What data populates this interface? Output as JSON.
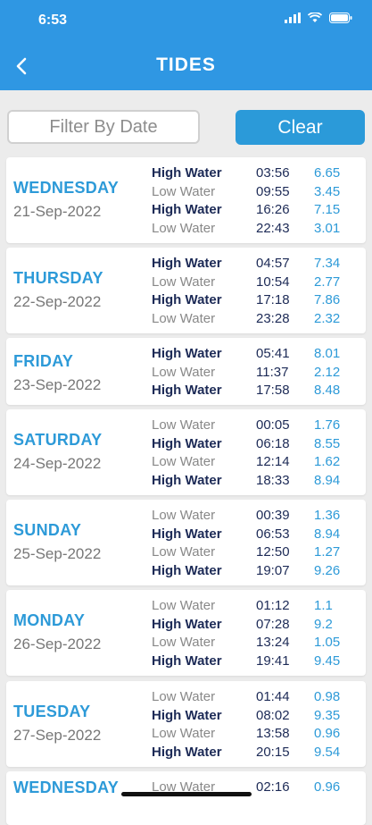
{
  "status_bar": {
    "time": "6:53"
  },
  "header": {
    "title": "TIDES"
  },
  "filter": {
    "placeholder": "Filter By Date",
    "clear_label": "Clear"
  },
  "days": [
    {
      "day": "WEDNESDAY",
      "date": "21-Sep-2022",
      "tides": [
        {
          "type": "High Water",
          "time": "03:56",
          "height": "6.65"
        },
        {
          "type": "Low Water",
          "time": "09:55",
          "height": "3.45"
        },
        {
          "type": "High Water",
          "time": "16:26",
          "height": "7.15"
        },
        {
          "type": "Low Water",
          "time": "22:43",
          "height": "3.01"
        }
      ]
    },
    {
      "day": "THURSDAY",
      "date": "22-Sep-2022",
      "tides": [
        {
          "type": "High Water",
          "time": "04:57",
          "height": "7.34"
        },
        {
          "type": "Low Water",
          "time": "10:54",
          "height": "2.77"
        },
        {
          "type": "High Water",
          "time": "17:18",
          "height": "7.86"
        },
        {
          "type": "Low Water",
          "time": "23:28",
          "height": "2.32"
        }
      ]
    },
    {
      "day": "FRIDAY",
      "date": "23-Sep-2022",
      "tides": [
        {
          "type": "High Water",
          "time": "05:41",
          "height": "8.01"
        },
        {
          "type": "Low Water",
          "time": "11:37",
          "height": "2.12"
        },
        {
          "type": "High Water",
          "time": "17:58",
          "height": "8.48"
        }
      ]
    },
    {
      "day": "SATURDAY",
      "date": "24-Sep-2022",
      "tides": [
        {
          "type": "Low Water",
          "time": "00:05",
          "height": "1.76"
        },
        {
          "type": "High Water",
          "time": "06:18",
          "height": "8.55"
        },
        {
          "type": "Low Water",
          "time": "12:14",
          "height": "1.62"
        },
        {
          "type": "High Water",
          "time": "18:33",
          "height": "8.94"
        }
      ]
    },
    {
      "day": "SUNDAY",
      "date": "25-Sep-2022",
      "tides": [
        {
          "type": "Low Water",
          "time": "00:39",
          "height": "1.36"
        },
        {
          "type": "High Water",
          "time": "06:53",
          "height": "8.94"
        },
        {
          "type": "Low Water",
          "time": "12:50",
          "height": "1.27"
        },
        {
          "type": "High Water",
          "time": "19:07",
          "height": "9.26"
        }
      ]
    },
    {
      "day": "MONDAY",
      "date": "26-Sep-2022",
      "tides": [
        {
          "type": "Low Water",
          "time": "01:12",
          "height": "1.1"
        },
        {
          "type": "High Water",
          "time": "07:28",
          "height": "9.2"
        },
        {
          "type": "Low Water",
          "time": "13:24",
          "height": "1.05"
        },
        {
          "type": "High Water",
          "time": "19:41",
          "height": "9.45"
        }
      ]
    },
    {
      "day": "TUESDAY",
      "date": "27-Sep-2022",
      "tides": [
        {
          "type": "Low Water",
          "time": "01:44",
          "height": "0.98"
        },
        {
          "type": "High Water",
          "time": "08:02",
          "height": "9.35"
        },
        {
          "type": "Low Water",
          "time": "13:58",
          "height": "0.96"
        },
        {
          "type": "High Water",
          "time": "20:15",
          "height": "9.54"
        }
      ]
    },
    {
      "day": "WEDNESDAY",
      "date": "",
      "tides": [
        {
          "type": "Low Water",
          "time": "02:16",
          "height": "0.96"
        }
      ]
    }
  ]
}
